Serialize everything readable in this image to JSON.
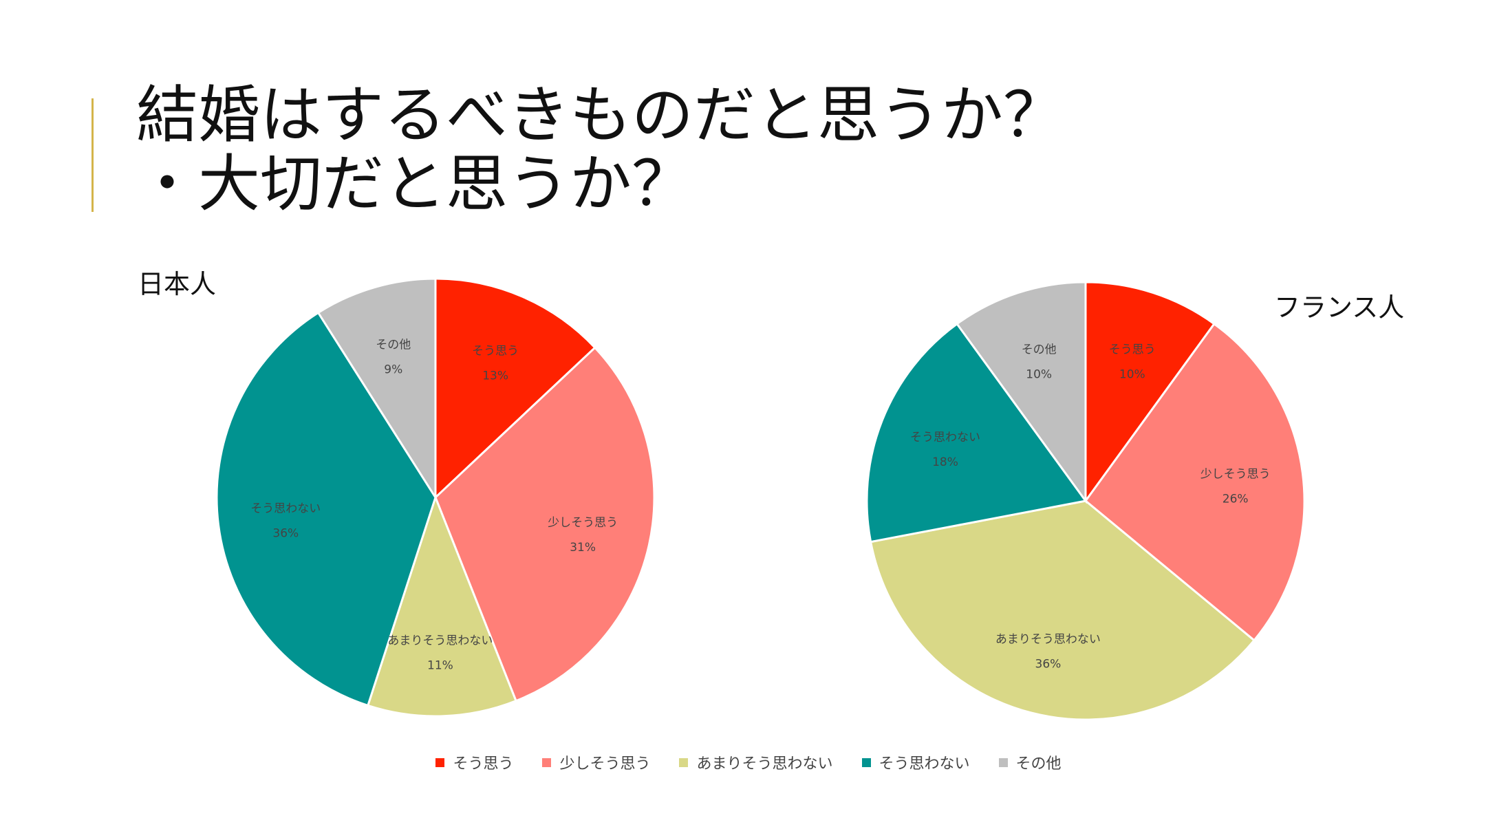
{
  "slide": {
    "title_line1": "結婚はするべきものだと思うか？",
    "title_line2": "・大切だと思うか？",
    "accent_color": "#d4b44a"
  },
  "chart_data": [
    {
      "type": "pie",
      "title": "日本人",
      "categories": [
        "そう思う",
        "少しそう思う",
        "あまりそう思わない",
        "そう思わない",
        "その他"
      ],
      "values": [
        13,
        31,
        11,
        36,
        9
      ],
      "labels": [
        "13%",
        "31%",
        "11%",
        "36%",
        "9%"
      ],
      "colors": [
        "#ff2200",
        "#ff7f78",
        "#d9d887",
        "#019390",
        "#bfbfbf"
      ]
    },
    {
      "type": "pie",
      "title": "フランス人",
      "categories": [
        "そう思う",
        "少しそう思う",
        "あまりそう思わない",
        "そう思わない",
        "その他"
      ],
      "values": [
        10,
        26,
        36,
        18,
        10
      ],
      "labels": [
        "10%",
        "26%",
        "36%",
        "18%",
        "10%"
      ],
      "colors": [
        "#ff2200",
        "#ff7f78",
        "#d9d887",
        "#019390",
        "#bfbfbf"
      ]
    }
  ],
  "legend": {
    "position": "bottom",
    "items": [
      {
        "label": "そう思う",
        "color": "#ff2200"
      },
      {
        "label": "少しそう思う",
        "color": "#ff7f78"
      },
      {
        "label": "あまりそう思わない",
        "color": "#d9d887"
      },
      {
        "label": "そう思わない",
        "color": "#019390"
      },
      {
        "label": "その他",
        "color": "#bfbfbf"
      }
    ]
  }
}
